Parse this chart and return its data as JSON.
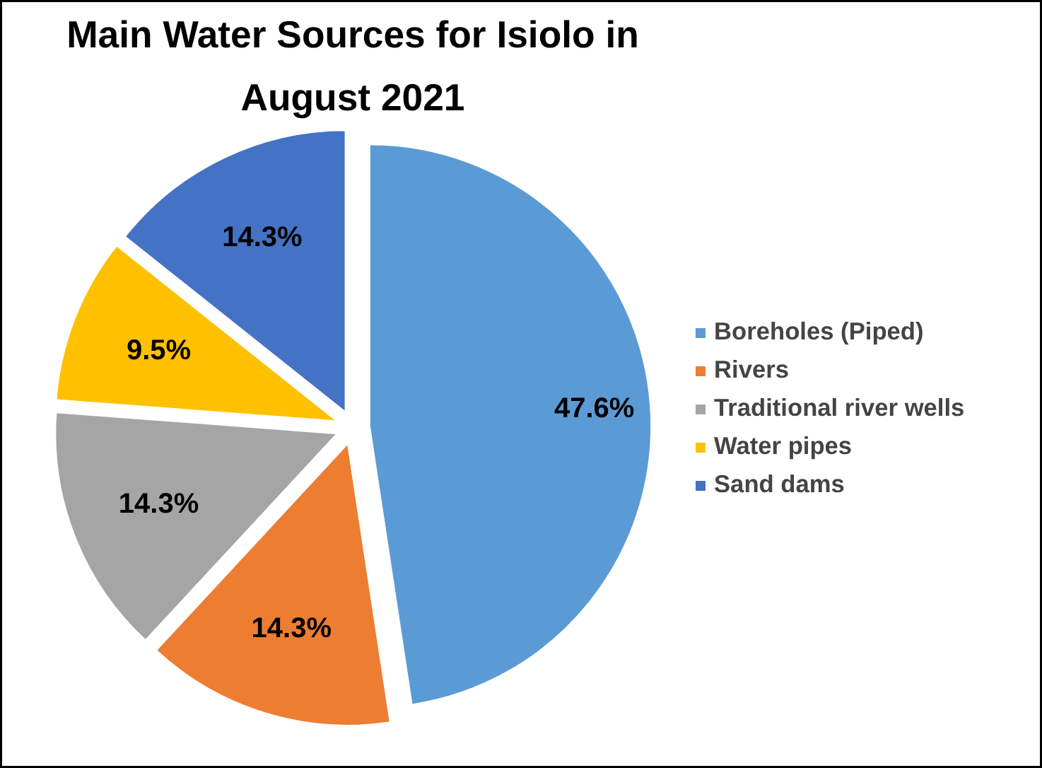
{
  "chart_data": {
    "type": "pie",
    "title": "Main Water Sources for Isiolo in August 2021",
    "categories": [
      "Boreholes (Piped)",
      "Rivers",
      "Traditional river wells",
      "Water pipes",
      "Sand dams"
    ],
    "values": [
      47.6,
      14.3,
      14.3,
      9.5,
      14.3
    ],
    "colors": [
      "#5b9bd5",
      "#ed7d31",
      "#a5a5a5",
      "#ffc000",
      "#4472c4"
    ],
    "value_labels": [
      "47.6%",
      "14.3%",
      "14.3%",
      "9.5%",
      "14.3%"
    ],
    "legend": "right"
  }
}
